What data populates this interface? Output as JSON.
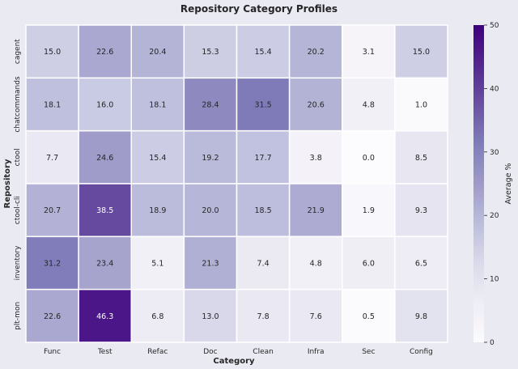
{
  "chart_data": {
    "type": "heatmap",
    "title": "Repository Category Profiles",
    "xlabel": "Category",
    "ylabel": "Repository",
    "colorbar_label": "Average %",
    "colorbar_range": [
      0,
      50
    ],
    "colorbar_ticks": [
      "0",
      "10",
      "20",
      "30",
      "40",
      "50"
    ],
    "colormap": "Purples",
    "color_low": "#fcfbfd",
    "color_high": "#3f007d",
    "columns": [
      "Func",
      "Test",
      "Refac",
      "Doc",
      "Clean",
      "Infra",
      "Sec",
      "Config"
    ],
    "rows": [
      "cagent",
      "chatcommands",
      "ctool",
      "ctool-cli",
      "inventory",
      "plt-mon"
    ],
    "values": [
      [
        15.0,
        22.6,
        20.4,
        15.3,
        15.4,
        20.2,
        3.1,
        15.0
      ],
      [
        18.1,
        16.0,
        18.1,
        28.4,
        31.5,
        20.6,
        4.8,
        1.0
      ],
      [
        7.7,
        24.6,
        15.4,
        19.2,
        17.7,
        3.8,
        0.0,
        8.5
      ],
      [
        20.7,
        38.5,
        18.9,
        20.0,
        18.5,
        21.9,
        1.9,
        9.3
      ],
      [
        31.2,
        23.4,
        5.1,
        21.3,
        7.4,
        4.8,
        6.0,
        6.5
      ],
      [
        22.6,
        46.3,
        6.8,
        13.0,
        7.8,
        7.6,
        0.5,
        9.8
      ]
    ],
    "grid": false
  }
}
